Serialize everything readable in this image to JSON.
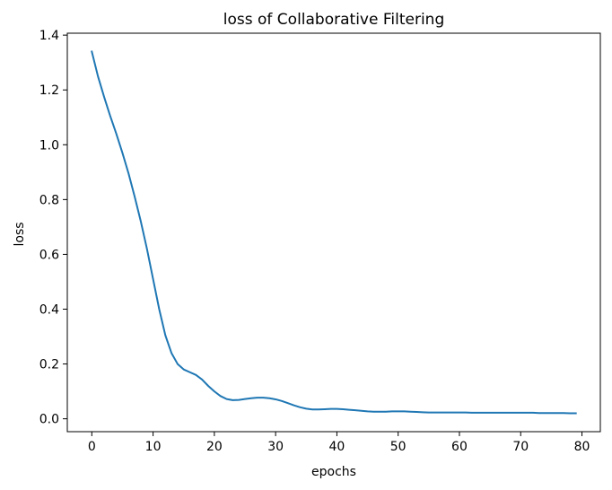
{
  "chart_data": {
    "type": "line",
    "title": "loss of Collaborative Filtering",
    "xlabel": "epochs",
    "ylabel": "loss",
    "xlim": [
      -4,
      83
    ],
    "ylim": [
      -0.047,
      1.407
    ],
    "xticks": [
      0,
      10,
      20,
      30,
      40,
      50,
      60,
      70,
      80
    ],
    "yticks": [
      0.0,
      0.2,
      0.4,
      0.6,
      0.8,
      1.0,
      1.2,
      1.4
    ],
    "ytick_labels": [
      "0.0",
      "0.2",
      "0.4",
      "0.6",
      "0.8",
      "1.0",
      "1.2",
      "1.4"
    ],
    "grid": false,
    "series": [
      {
        "color": "#1f77b4",
        "x": [
          0,
          1,
          2,
          3,
          4,
          5,
          6,
          7,
          8,
          9,
          10,
          11,
          12,
          13,
          14,
          15,
          16,
          17,
          18,
          19,
          20,
          21,
          22,
          23,
          24,
          25,
          26,
          27,
          28,
          29,
          30,
          31,
          32,
          33,
          34,
          35,
          36,
          37,
          38,
          39,
          40,
          41,
          42,
          43,
          44,
          45,
          46,
          47,
          48,
          49,
          50,
          51,
          52,
          53,
          54,
          55,
          56,
          57,
          58,
          59,
          60,
          61,
          62,
          63,
          64,
          65,
          66,
          67,
          68,
          69,
          70,
          71,
          72,
          73,
          74,
          75,
          76,
          77,
          78,
          79
        ],
        "y": [
          1.34,
          1.25,
          1.175,
          1.105,
          1.04,
          0.97,
          0.895,
          0.81,
          0.72,
          0.62,
          0.51,
          0.4,
          0.305,
          0.24,
          0.2,
          0.18,
          0.17,
          0.16,
          0.143,
          0.12,
          0.1,
          0.083,
          0.072,
          0.068,
          0.069,
          0.072,
          0.075,
          0.077,
          0.077,
          0.075,
          0.071,
          0.065,
          0.057,
          0.049,
          0.042,
          0.037,
          0.034,
          0.034,
          0.035,
          0.036,
          0.036,
          0.035,
          0.033,
          0.031,
          0.029,
          0.027,
          0.026,
          0.026,
          0.026,
          0.027,
          0.027,
          0.027,
          0.026,
          0.025,
          0.024,
          0.023,
          0.023,
          0.023,
          0.023,
          0.023,
          0.023,
          0.023,
          0.022,
          0.022,
          0.022,
          0.022,
          0.022,
          0.022,
          0.022,
          0.022,
          0.022,
          0.022,
          0.022,
          0.021,
          0.021,
          0.021,
          0.021,
          0.021,
          0.02,
          0.02
        ]
      }
    ]
  }
}
